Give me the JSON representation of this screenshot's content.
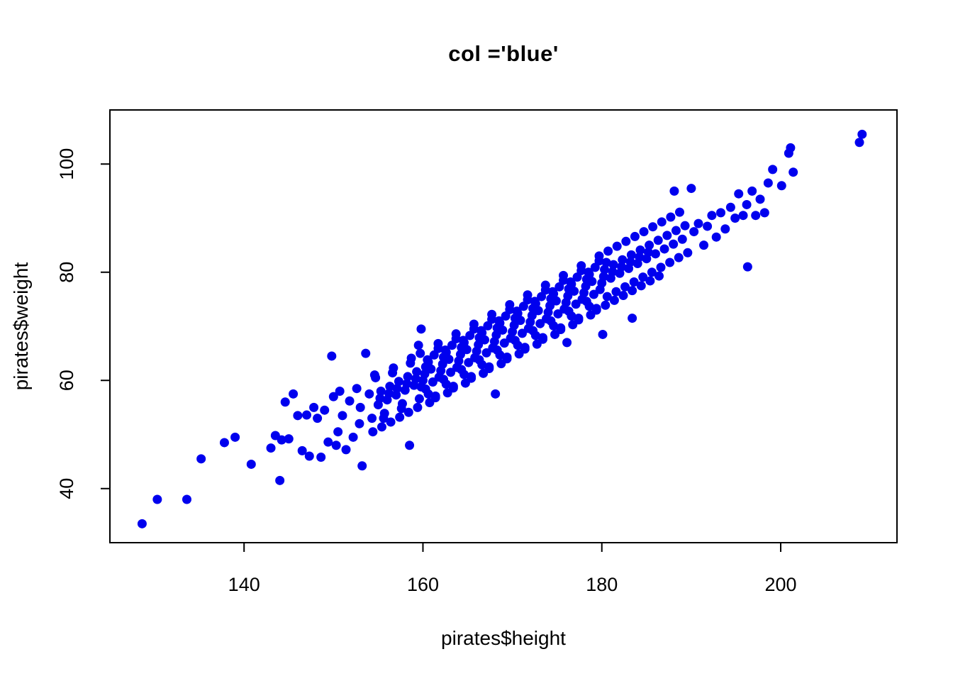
{
  "title": "col ='blue'",
  "colors": {
    "point": "#0000EE",
    "axis": "#000000",
    "background": "#FFFFFF"
  },
  "chart_data": {
    "type": "scatter",
    "title": "col ='blue'",
    "xlabel": "pirates$height",
    "ylabel": "pirates$weight",
    "x_ticks": [
      140,
      160,
      180,
      200
    ],
    "y_ticks": [
      40,
      60,
      80,
      100
    ],
    "xlim": [
      125,
      213
    ],
    "ylim": [
      30,
      110
    ],
    "grid": false,
    "legend": false,
    "point_color": "#0000EE",
    "points": [
      [
        128.6,
        33.5
      ],
      [
        130.3,
        38
      ],
      [
        133.6,
        38
      ],
      [
        135.2,
        45.5
      ],
      [
        137.8,
        48.5
      ],
      [
        139,
        49.5
      ],
      [
        140.8,
        44.5
      ],
      [
        143,
        47.5
      ],
      [
        143.5,
        49.8
      ],
      [
        144,
        41.5
      ],
      [
        144.2,
        49
      ],
      [
        144.6,
        56
      ],
      [
        145,
        49.2
      ],
      [
        145.5,
        57.5
      ],
      [
        146,
        53.5
      ],
      [
        146.5,
        47
      ],
      [
        147,
        53.6
      ],
      [
        147.3,
        46
      ],
      [
        147.8,
        55
      ],
      [
        148.2,
        53
      ],
      [
        148.6,
        45.8
      ],
      [
        149,
        54.5
      ],
      [
        149.4,
        48.6
      ],
      [
        149.8,
        64.5
      ],
      [
        150,
        57
      ],
      [
        150.3,
        48
      ],
      [
        150.5,
        50.5
      ],
      [
        150.7,
        58
      ],
      [
        151,
        53.5
      ],
      [
        151.4,
        47.2
      ],
      [
        151.8,
        56.2
      ],
      [
        152.2,
        49.5
      ],
      [
        152.6,
        58.5
      ],
      [
        152.9,
        52
      ],
      [
        153,
        55
      ],
      [
        153.2,
        44.2
      ],
      [
        153.6,
        65
      ],
      [
        154,
        57.5
      ],
      [
        154.3,
        53
      ],
      [
        154.6,
        61
      ],
      [
        155,
        55.5
      ],
      [
        155.3,
        58
      ],
      [
        155.6,
        53
      ],
      [
        154.7,
        60.5
      ],
      [
        154.4,
        50.5
      ],
      [
        155.2,
        56.7
      ],
      [
        156,
        56.4
      ],
      [
        156.3,
        58.9
      ],
      [
        155.7,
        53.9
      ],
      [
        156.6,
        61.4
      ],
      [
        155.4,
        51.4
      ],
      [
        156.2,
        57.6
      ],
      [
        157,
        57.3
      ],
      [
        157.3,
        59.8
      ],
      [
        157.6,
        54.8
      ],
      [
        156.7,
        62.3
      ],
      [
        156.4,
        52.3
      ],
      [
        157.1,
        58.5
      ],
      [
        158,
        58.2
      ],
      [
        158.3,
        60.7
      ],
      [
        157.7,
        55.7
      ],
      [
        158.6,
        63.2
      ],
      [
        157.4,
        53.2
      ],
      [
        158.2,
        59.4
      ],
      [
        158.5,
        48
      ],
      [
        159,
        59.1
      ],
      [
        159.3,
        61.6
      ],
      [
        159.6,
        56.6
      ],
      [
        158.7,
        64.1
      ],
      [
        158.4,
        54.1
      ],
      [
        159.2,
        60.3
      ],
      [
        159.5,
        66.5
      ],
      [
        159.8,
        69.5
      ],
      [
        160,
        60
      ],
      [
        160.3,
        62.5
      ],
      [
        160.6,
        57.5
      ],
      [
        159.7,
        65
      ],
      [
        159.4,
        55
      ],
      [
        160.2,
        61.2
      ],
      [
        159.8,
        58.8
      ],
      [
        160.5,
        63.8
      ],
      [
        160.9,
        62.1
      ],
      [
        161.4,
        57.1
      ],
      [
        160.6,
        63.4
      ],
      [
        161.1,
        59.7
      ],
      [
        161.7,
        65.9
      ],
      [
        160.3,
        58.4
      ],
      [
        161.25,
        64.7
      ],
      [
        160.75,
        55.9
      ],
      [
        162,
        61.8
      ],
      [
        162.3,
        64.3
      ],
      [
        162.6,
        59.3
      ],
      [
        161.7,
        66.8
      ],
      [
        161.4,
        56.8
      ],
      [
        162.2,
        63
      ],
      [
        161.8,
        60.6
      ],
      [
        162.5,
        65.6
      ],
      [
        162.9,
        63.9
      ],
      [
        163.4,
        58.9
      ],
      [
        162.6,
        65.2
      ],
      [
        163.1,
        61.5
      ],
      [
        163.7,
        67.7
      ],
      [
        162.3,
        60.2
      ],
      [
        163.25,
        66.5
      ],
      [
        162.75,
        57.7
      ],
      [
        164,
        63.6
      ],
      [
        164.3,
        66.1
      ],
      [
        164.6,
        61.1
      ],
      [
        163.7,
        68.6
      ],
      [
        163.4,
        58.6
      ],
      [
        164.2,
        64.8
      ],
      [
        163.8,
        62.4
      ],
      [
        164.5,
        67.4
      ],
      [
        164.9,
        65.7
      ],
      [
        165.4,
        60.7
      ],
      [
        164.6,
        67
      ],
      [
        165.1,
        63.3
      ],
      [
        165.7,
        69.5
      ],
      [
        164.3,
        62
      ],
      [
        165.25,
        68.3
      ],
      [
        164.75,
        59.5
      ],
      [
        166,
        65.4
      ],
      [
        166.3,
        67.9
      ],
      [
        166.6,
        62.9
      ],
      [
        165.7,
        70.4
      ],
      [
        165.4,
        60.4
      ],
      [
        166.2,
        66.6
      ],
      [
        165.8,
        64.2
      ],
      [
        166.5,
        69.2
      ],
      [
        166.9,
        67.5
      ],
      [
        167.4,
        62.5
      ],
      [
        166.6,
        68.8
      ],
      [
        167.1,
        65.1
      ],
      [
        167.7,
        71.3
      ],
      [
        166.3,
        63.8
      ],
      [
        167.25,
        70.1
      ],
      [
        166.75,
        61.3
      ],
      [
        168,
        67.2
      ],
      [
        168.3,
        69.7
      ],
      [
        168.6,
        64.7
      ],
      [
        167.7,
        72.2
      ],
      [
        167.4,
        62.2
      ],
      [
        168.2,
        68.4
      ],
      [
        167.8,
        66
      ],
      [
        168.5,
        71
      ],
      [
        168.1,
        57.5
      ],
      [
        168.9,
        69.3
      ],
      [
        169.4,
        64.3
      ],
      [
        168.6,
        70.6
      ],
      [
        169.1,
        66.9
      ],
      [
        169.7,
        73.1
      ],
      [
        168.3,
        65.6
      ],
      [
        169.25,
        71.9
      ],
      [
        168.75,
        63.1
      ],
      [
        170,
        69
      ],
      [
        170.3,
        71.5
      ],
      [
        170.6,
        66.5
      ],
      [
        169.7,
        74
      ],
      [
        169.4,
        64
      ],
      [
        170.2,
        70.2
      ],
      [
        169.8,
        67.8
      ],
      [
        170.5,
        72.8
      ],
      [
        170.9,
        71.1
      ],
      [
        171.4,
        66.1
      ],
      [
        170.6,
        72.4
      ],
      [
        171.1,
        68.7
      ],
      [
        171.7,
        74.9
      ],
      [
        170.3,
        67.4
      ],
      [
        171.25,
        73.7
      ],
      [
        170.75,
        64.9
      ],
      [
        172,
        70.8
      ],
      [
        172.3,
        73.3
      ],
      [
        172.6,
        68.3
      ],
      [
        171.7,
        75.8
      ],
      [
        171.4,
        65.8
      ],
      [
        172.2,
        72
      ],
      [
        171.8,
        69.6
      ],
      [
        172.5,
        74.6
      ],
      [
        172.9,
        72.9
      ],
      [
        173.4,
        67.9
      ],
      [
        172.6,
        74.2
      ],
      [
        173.1,
        70.5
      ],
      [
        173.7,
        76.7
      ],
      [
        172.3,
        69.2
      ],
      [
        173.25,
        75.5
      ],
      [
        172.75,
        66.7
      ],
      [
        174,
        72.6
      ],
      [
        174.3,
        75.1
      ],
      [
        174.6,
        70.1
      ],
      [
        173.7,
        77.6
      ],
      [
        173.4,
        67.6
      ],
      [
        174.2,
        73.8
      ],
      [
        173.8,
        71.4
      ],
      [
        174.5,
        76.4
      ],
      [
        174.9,
        74.7
      ],
      [
        175.4,
        69.7
      ],
      [
        174.6,
        76
      ],
      [
        175.1,
        72.3
      ],
      [
        175.7,
        78.5
      ],
      [
        174.3,
        71
      ],
      [
        175.25,
        77.3
      ],
      [
        174.75,
        68.5
      ],
      [
        176,
        74.4
      ],
      [
        176.3,
        76.9
      ],
      [
        176.6,
        71.9
      ],
      [
        175.7,
        79.4
      ],
      [
        175.4,
        69.4
      ],
      [
        176.2,
        75.6
      ],
      [
        175.8,
        73.2
      ],
      [
        176.5,
        78.2
      ],
      [
        176.1,
        67
      ],
      [
        176.9,
        76.5
      ],
      [
        177.4,
        71.5
      ],
      [
        176.6,
        77.8
      ],
      [
        177.1,
        74.1
      ],
      [
        177.7,
        80.3
      ],
      [
        176.3,
        72.8
      ],
      [
        177.25,
        79.1
      ],
      [
        176.75,
        70.3
      ],
      [
        178,
        76.2
      ],
      [
        178.3,
        78.7
      ],
      [
        178.6,
        73.7
      ],
      [
        177.7,
        81.2
      ],
      [
        177.4,
        71.2
      ],
      [
        178.2,
        77.4
      ],
      [
        177.8,
        75
      ],
      [
        178.5,
        80
      ],
      [
        178.9,
        78.3
      ],
      [
        179.4,
        73.3
      ],
      [
        178.6,
        79.6
      ],
      [
        179.1,
        75.9
      ],
      [
        179.7,
        82.1
      ],
      [
        178.3,
        74.6
      ],
      [
        179.25,
        80.9
      ],
      [
        178.75,
        72.1
      ],
      [
        180,
        78
      ],
      [
        180.3,
        80.5
      ],
      [
        180.6,
        75.5
      ],
      [
        179.7,
        83
      ],
      [
        179.4,
        73
      ],
      [
        180.2,
        79.2
      ],
      [
        179.8,
        76.8
      ],
      [
        180.5,
        81.8
      ],
      [
        180.1,
        68.5
      ],
      [
        181,
        78.9
      ],
      [
        181.3,
        81.4
      ],
      [
        181.6,
        76.4
      ],
      [
        180.7,
        83.9
      ],
      [
        180.4,
        73.9
      ],
      [
        181.2,
        80.1
      ],
      [
        182,
        79.8
      ],
      [
        182.3,
        82.3
      ],
      [
        182.6,
        77.3
      ],
      [
        181.7,
        84.8
      ],
      [
        181.4,
        74.8
      ],
      [
        182.2,
        81
      ],
      [
        183,
        80.7
      ],
      [
        183.3,
        83.2
      ],
      [
        183.6,
        78.2
      ],
      [
        182.7,
        85.7
      ],
      [
        182.4,
        75.7
      ],
      [
        183.2,
        81.9
      ],
      [
        183.4,
        71.5
      ],
      [
        184,
        81.6
      ],
      [
        184.3,
        84.1
      ],
      [
        184.6,
        79.1
      ],
      [
        183.7,
        86.6
      ],
      [
        183.4,
        76.6
      ],
      [
        184.2,
        82.8
      ],
      [
        185,
        82.5
      ],
      [
        185.3,
        85
      ],
      [
        185.6,
        80
      ],
      [
        184.7,
        87.5
      ],
      [
        184.4,
        77.5
      ],
      [
        185.2,
        83.7
      ],
      [
        186,
        83.4
      ],
      [
        186.3,
        85.9
      ],
      [
        186.6,
        80.9
      ],
      [
        185.7,
        88.4
      ],
      [
        185.4,
        78.4
      ],
      [
        187,
        84.3
      ],
      [
        187.3,
        86.8
      ],
      [
        187.6,
        81.8
      ],
      [
        186.7,
        89.3
      ],
      [
        186.4,
        79.3
      ],
      [
        188,
        85.2
      ],
      [
        188.3,
        87.7
      ],
      [
        188.6,
        82.7
      ],
      [
        187.7,
        90.2
      ],
      [
        188.1,
        95
      ],
      [
        189,
        86.1
      ],
      [
        189.3,
        88.6
      ],
      [
        189.6,
        83.6
      ],
      [
        188.7,
        91.1
      ],
      [
        190,
        95.5
      ],
      [
        190.3,
        87.5
      ],
      [
        190.8,
        89
      ],
      [
        191.4,
        85
      ],
      [
        191.8,
        88.5
      ],
      [
        192.3,
        90.5
      ],
      [
        192.8,
        86.5
      ],
      [
        193.3,
        91
      ],
      [
        193.8,
        88
      ],
      [
        194.4,
        92
      ],
      [
        194.9,
        90
      ],
      [
        195.3,
        94.5
      ],
      [
        195.8,
        90.5
      ],
      [
        196.2,
        92.5
      ],
      [
        196.3,
        81
      ],
      [
        196.8,
        95
      ],
      [
        197.2,
        90.5
      ],
      [
        197.7,
        93.5
      ],
      [
        198.2,
        91
      ],
      [
        198.6,
        96.5
      ],
      [
        199.1,
        99
      ],
      [
        200.1,
        96
      ],
      [
        200.9,
        102
      ],
      [
        201.1,
        103
      ],
      [
        201.4,
        98.5
      ],
      [
        208.8,
        104
      ],
      [
        209.1,
        105.5
      ]
    ]
  }
}
